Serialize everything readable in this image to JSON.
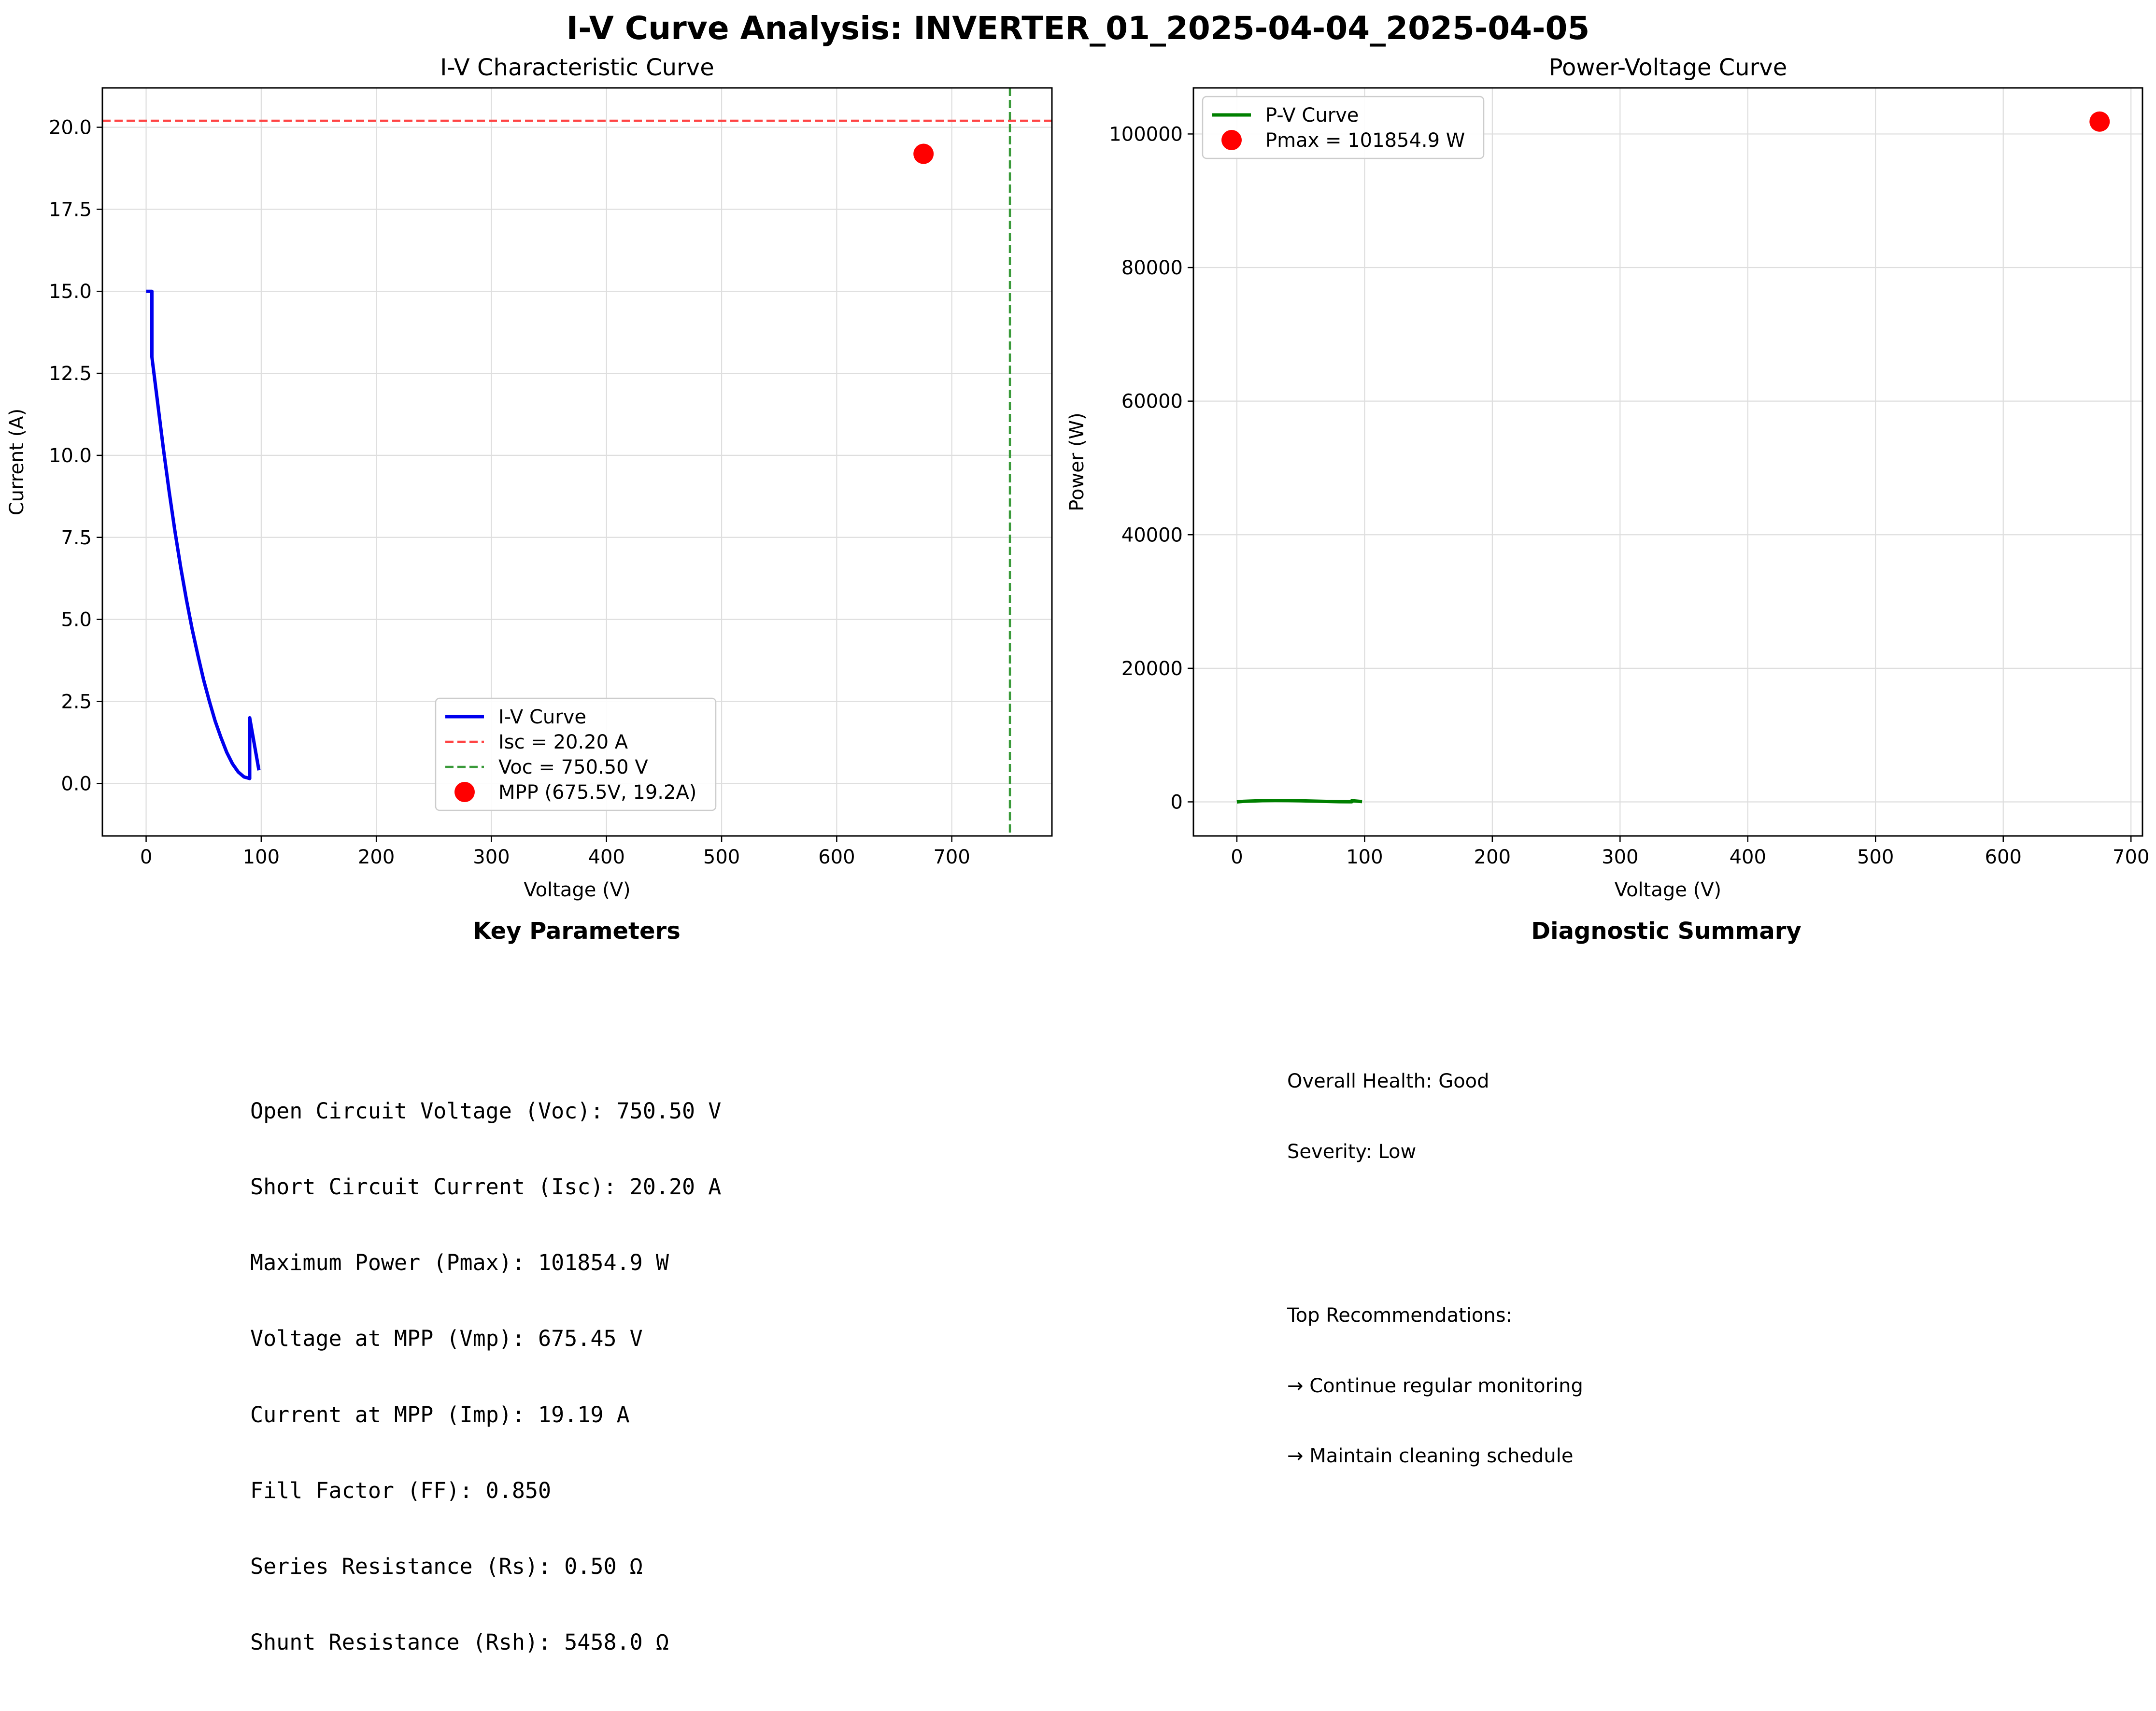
{
  "title": "I-V Curve Analysis: INVERTER_01_2025-04-04_2025-04-05",
  "chart_data": [
    {
      "type": "line",
      "title": "I-V Characteristic Curve",
      "xlabel": "Voltage (V)",
      "ylabel": "Current (A)",
      "xlim": [
        -38,
        787
      ],
      "ylim": [
        -1.6,
        21.2
      ],
      "x_ticks": [
        0,
        100,
        200,
        300,
        400,
        500,
        600,
        700
      ],
      "y_ticks": [
        0.0,
        2.5,
        5.0,
        7.5,
        10.0,
        12.5,
        15.0,
        17.5,
        20.0
      ],
      "y_tick_labels": [
        "0.0",
        "2.5",
        "5.0",
        "7.5",
        "10.0",
        "12.5",
        "15.0",
        "17.5",
        "20.0"
      ],
      "grid": true,
      "legend_position": "lower center",
      "series": [
        {
          "name": "I-V Curve",
          "color": "#0000ee",
          "x": [
            0,
            5,
            5,
            10,
            15,
            20,
            25,
            30,
            35,
            40,
            45,
            50,
            55,
            60,
            65,
            70,
            75,
            80,
            85,
            90,
            90,
            98
          ],
          "y": [
            15.0,
            15.0,
            13.0,
            11.6,
            10.2,
            8.9,
            7.7,
            6.6,
            5.6,
            4.7,
            3.9,
            3.15,
            2.5,
            1.9,
            1.4,
            0.95,
            0.6,
            0.35,
            0.2,
            0.15,
            2.0,
            0.4
          ]
        }
      ],
      "reference_lines": [
        {
          "name": "Isc = 20.20 A",
          "orientation": "horizontal",
          "value": 20.2,
          "color": "#ff4444"
        },
        {
          "name": "Voc = 750.50 V",
          "orientation": "vertical",
          "value": 750.5,
          "color": "#3a9a3a"
        }
      ],
      "points": [
        {
          "name": "MPP (675.5V, 19.2A)",
          "x": 675.45,
          "y": 19.19,
          "color": "#ff0000"
        }
      ]
    },
    {
      "type": "line",
      "title": "Power-Voltage Curve",
      "xlabel": "Voltage (V)",
      "ylabel": "Power (W)",
      "xlim": [
        -34,
        709
      ],
      "ylim": [
        -5100,
        106900
      ],
      "x_ticks": [
        0,
        100,
        200,
        300,
        400,
        500,
        600,
        700
      ],
      "y_ticks": [
        0,
        20000,
        40000,
        60000,
        80000,
        100000
      ],
      "y_tick_labels": [
        "0",
        "20000",
        "40000",
        "60000",
        "80000",
        "100000"
      ],
      "grid": true,
      "legend_position": "upper left",
      "series": [
        {
          "name": "P-V Curve",
          "color": "#008000",
          "x": [
            0,
            5,
            10,
            20,
            30,
            40,
            50,
            60,
            70,
            80,
            90,
            90,
            98
          ],
          "y": [
            0,
            75,
            116,
            178,
            198,
            188,
            158,
            114,
            67,
            28,
            14,
            180,
            39
          ]
        }
      ],
      "points": [
        {
          "name": "Pmax = 101854.9 W",
          "x": 675.45,
          "y": 101854.9,
          "color": "#ff0000"
        }
      ]
    }
  ],
  "key_parameters": {
    "heading": "Key Parameters",
    "lines": [
      "Open Circuit Voltage (Voc): 750.50 V",
      "Short Circuit Current (Isc): 20.20 A",
      "Maximum Power (Pmax): 101854.9 W",
      "Voltage at MPP (Vmp): 675.45 V",
      "Current at MPP (Imp): 19.19 A",
      "Fill Factor (FF): 0.850",
      "Series Resistance (Rs): 0.50 Ω",
      "Shunt Resistance (Rsh): 5458.0 Ω"
    ]
  },
  "diagnostic_summary": {
    "heading": "Diagnostic Summary",
    "overall_health": "Overall Health: Good",
    "severity": "Severity: Low",
    "recommendations_heading": "Top Recommendations:",
    "recommendations": [
      "→ Continue regular monitoring",
      "→ Maintain cleaning schedule"
    ]
  }
}
